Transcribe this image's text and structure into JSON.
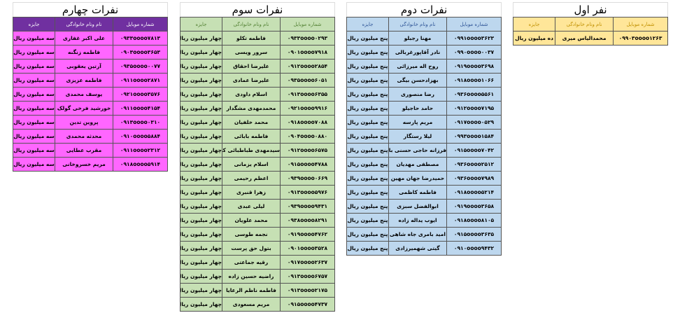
{
  "headers": {
    "phone": "شماره موبایل",
    "name": "نام ونام خانوادگی",
    "prize": "جایزه"
  },
  "colors": {
    "first": "#ffe699",
    "second": "#bdd7ee",
    "third": "#c6e0b4",
    "fourth": "#ff66ff",
    "fourth_header": "#7030a0"
  },
  "tables": [
    {
      "title": "نفر اول",
      "rows": [
        {
          "phone": "۰۹۹۰۳oooo۱۲۶۳",
          "name": "محمدالیاس میری",
          "prize": "ده میلیون ریال"
        }
      ]
    },
    {
      "title": "نفرات دوم",
      "rows": [
        {
          "phone": "۰۹۹۱oooo۳۶۲۳",
          "name": "مهنا رجبلو",
          "prize": "پنج میلیون ریال"
        },
        {
          "phone": "۰۹۹۰oooo۰۰۳۷",
          "name": "نادر آقاپورغربالی",
          "prize": "پنج میلیون ریال"
        },
        {
          "phone": "۰۹۱۹oooo۳۶۹۸",
          "name": "روح اله میرزائی",
          "prize": "پنج میلیون ریال"
        },
        {
          "phone": "۰۹۱۸oooo۱۰۶۶",
          "name": "بهزادحسن بیگی",
          "prize": "پنج میلیون ریال"
        },
        {
          "phone": "۰۹۳۶oooo۵۵۶۱",
          "name": "رضا منصوری",
          "prize": "پنج میلیون ریال"
        },
        {
          "phone": "۰۹۱۲oooo۷۱۹۵",
          "name": "حامد حاجیلو",
          "prize": "پنج میلیون ریال"
        },
        {
          "phone": "۰۹۱۷oooo۰۵۲۹",
          "name": "مریم پارسه",
          "prize": "پنج میلیون ریال"
        },
        {
          "phone": "۰۹۹۳oooo۱۵۸۴",
          "name": "لیلا رستگار",
          "prize": "پنج میلیون ریال"
        },
        {
          "phone": "۰۹۱۵oooo۷۰۴۲",
          "name": "فرزانه حاجی حسنی باققی",
          "prize": "پنج میلیون ریال"
        },
        {
          "phone": "۰۹۳۶oooo۲۵۱۲",
          "name": "مصطفی مهدیان",
          "prize": "پنج میلیون ریال"
        },
        {
          "phone": "۰۹۳۶oooo۷۹۸۹",
          "name": "حمیدرضا جهان مهین",
          "prize": "پنج میلیون ریال"
        },
        {
          "phone": "۰۹۱۸oooo۵۲۱۴",
          "name": "فاطمه کاظمی",
          "prize": "پنج میلیون ریال"
        },
        {
          "phone": "۰۹۱۹oooo۳۶۵۸",
          "name": "ابوالفضل سبزی",
          "prize": "پنج میلیون ریال"
        },
        {
          "phone": "۰۹۱۸oooo۸۱۰۵",
          "name": "ایوب یداله زاده",
          "prize": "پنج میلیون ریال"
        },
        {
          "phone": "۰۹۱۵oooo۳۶۳۵",
          "name": "امید بامری جاه شاهی",
          "prize": "پنج میلیون ریال"
        },
        {
          "phone": "۰۹۱۰oooo۹۴۳۲",
          "name": "گیتی شهمیرزادی",
          "prize": "پنج میلیون ریال"
        }
      ]
    },
    {
      "title": "نفرات سوم",
      "rows": [
        {
          "phone": "۰۹۳۳oooo۰۲۹۳",
          "name": "فاطمه تکلو",
          "prize": "چهار میلیون ریال"
        },
        {
          "phone": "۰۹۰۱oooo۷۹۱۸",
          "name": "سرور ویسی",
          "prize": "چهار میلیون ریال"
        },
        {
          "phone": "۰۹۱۲oooo۲۸۵۴",
          "name": "علیرضا احقاق",
          "prize": "چهار میلیون ریال"
        },
        {
          "phone": "۰۹۳۵oooo۶۰۵۱",
          "name": "علیرضا عمادی",
          "prize": "چهار میلیون ریال"
        },
        {
          "phone": "۰۹۱۳oooo۶۳۵۵",
          "name": "اسلام داودی",
          "prize": "چهار میلیون ریال"
        },
        {
          "phone": "۰۹۲۱oooo۹۹۱۶",
          "name": "محمدمهدی مشگدار",
          "prize": "چهار میلیون ریال"
        },
        {
          "phone": "۰۹۱۸oooo۷۰۸۸",
          "name": "محمد خلفیان",
          "prize": "چهار میلیون ریال"
        },
        {
          "phone": "۰۹۰۴oooo۰۸۸۰",
          "name": "فاطمه بابائی",
          "prize": "چهار میلیون ریال"
        },
        {
          "phone": "۰۹۱۲oooo۶۵۷۵",
          "name": "سیدمهدی طباطبائی کرمانی",
          "prize": "چهار میلیون ریال"
        },
        {
          "phone": "۰۹۱۵oooo۴۷۸۸",
          "name": "اسلام یزمانی",
          "prize": "چهار میلیون ریال"
        },
        {
          "phone": "۰۹۳۹oooo۰۶۶۹",
          "name": "اعظم رحیمی",
          "prize": "چهار میلیون ریال"
        },
        {
          "phone": "۰۹۱۳oooo۵۹۷۶",
          "name": "زهرا قنبری",
          "prize": "چهار میلیون ریال"
        },
        {
          "phone": "۰۹۳۹oooo۹۴۳۱",
          "name": "لیلی عبدی",
          "prize": "چهار میلیون ریال"
        },
        {
          "phone": "۰۹۳۸oooo۸۲۹۱",
          "name": "محمد علویان",
          "prize": "چهار میلیون ریال"
        },
        {
          "phone": "۰۹۱۹oooo۴۷۶۲",
          "name": "نجمه طوسی",
          "prize": "چهار میلیون ریال"
        },
        {
          "phone": "۰۹۰۱oooo۳۵۲۸",
          "name": "بتول حق پرست",
          "prize": "چهار میلیون ریال"
        },
        {
          "phone": "۰۹۱۷oooo۲۶۳۷",
          "name": "رقیه جماعتی",
          "prize": "چهار میلیون ریال"
        },
        {
          "phone": "۰۹۱۳oooo۶۷۵۷",
          "name": "راضیه حسین زاده",
          "prize": "چهار میلیون ریال"
        },
        {
          "phone": "۰۹۱۳oooo۲۱۷۵",
          "name": "فاطمه ناظم الرعایا",
          "prize": "چهار میلیون ریال"
        },
        {
          "phone": "۰۹۱۵oooo۴۷۳۷",
          "name": "مریم مسعودی",
          "prize": "چهار میلیون ریال"
        }
      ]
    },
    {
      "title": "نفرات چهارم",
      "rows": [
        {
          "phone": "۰۹۳۳oooo۷۸۱۳",
          "name": "علی اکبر غفاری",
          "prize": "سه میلیون ریال"
        },
        {
          "phone": "۰۹۰۳oooo۳۶۵۳",
          "name": "فاطمه زنگنه",
          "prize": "سه میلیون ریال"
        },
        {
          "phone": "۰۹۳۵oooo۰۰۷۷",
          "name": "آرتین یعقوبی",
          "prize": "سه میلیون ریال"
        },
        {
          "phone": "۰۹۱۱oooo۲۸۷۱",
          "name": "فاطمه عزیزی",
          "prize": "سه میلیون ریال"
        },
        {
          "phone": "۰۹۲۱oooo۳۵۷۶",
          "name": "یوسف محمدی",
          "prize": "سه میلیون ریال"
        },
        {
          "phone": "۰۹۱۱oooo۴۱۵۴",
          "name": "خورشید فرخی گولک",
          "prize": "سه میلیون ریال"
        },
        {
          "phone": "۰۹۱۳oooo۰۳۱۰",
          "name": "پروین تدین",
          "prize": "سه میلیون ریال"
        },
        {
          "phone": "۰۹۱۰oooo۵۸۸۴",
          "name": "محدثه محمدی",
          "prize": "سه میلیون ریال"
        },
        {
          "phone": "۰۹۱۱oooo۲۳۱۲",
          "name": "مقرب عطایی",
          "prize": "سه میلیون ریال"
        },
        {
          "phone": "۰۹۱۸oooo۵۹۱۴",
          "name": "مریم خسروخانی",
          "prize": "سه میلیون ریال"
        }
      ]
    }
  ]
}
